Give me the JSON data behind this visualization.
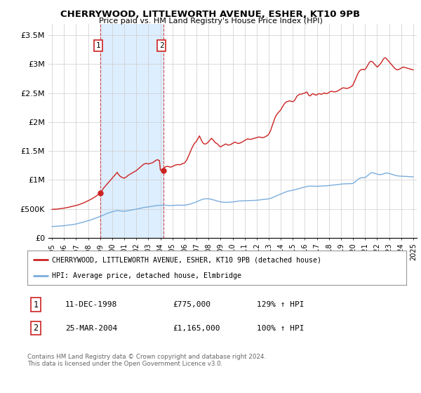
{
  "title": "CHERRYWOOD, LITTLEWORTH AVENUE, ESHER, KT10 9PB",
  "subtitle": "Price paid vs. HM Land Registry's House Price Index (HPI)",
  "legend_line1": "CHERRYWOOD, LITTLEWORTH AVENUE, ESHER, KT10 9PB (detached house)",
  "legend_line2": "HPI: Average price, detached house, Elmbridge",
  "sale1_date": "11-DEC-1998",
  "sale1_price": "£775,000",
  "sale1_hpi": "129% ↑ HPI",
  "sale2_date": "25-MAR-2004",
  "sale2_price": "£1,165,000",
  "sale2_hpi": "100% ↑ HPI",
  "footnote": "Contains HM Land Registry data © Crown copyright and database right 2024.\nThis data is licensed under the Open Government Licence v3.0.",
  "red_color": "#cc2222",
  "blue_color": "#7aaddc",
  "blue_shade": "#ddeeff",
  "background_color": "#ffffff",
  "grid_color": "#cccccc",
  "ylim": [
    0,
    3700000
  ],
  "yticks": [
    0,
    500000,
    1000000,
    1500000,
    2000000,
    2500000,
    3000000,
    3500000
  ],
  "ytick_labels": [
    "£0",
    "£500K",
    "£1M",
    "£1.5M",
    "£2M",
    "£2.5M",
    "£3M",
    "£3.5M"
  ],
  "sale1_x": 1999.0,
  "sale1_y": 775000,
  "sale2_x": 2004.25,
  "sale2_y": 1165000,
  "xmin": 1994.7,
  "xmax": 2025.3
}
